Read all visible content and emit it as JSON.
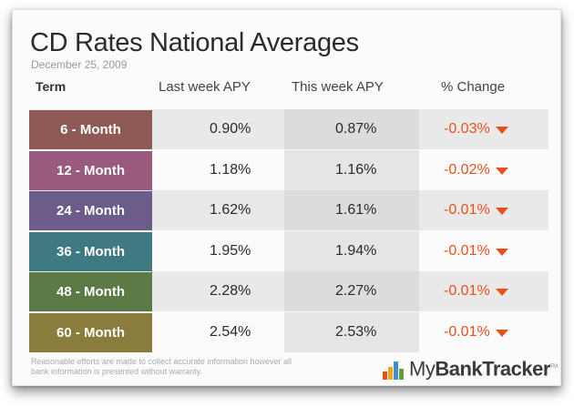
{
  "title": "CD Rates National Averages",
  "date": "December 25, 2009",
  "headers": {
    "term": "Term",
    "last_week": "Last week APY",
    "this_week": "This week APY",
    "change": "% Change"
  },
  "rows": [
    {
      "term": "6 - Month",
      "last_week": "0.90%",
      "this_week": "0.87%",
      "change": "-0.03%",
      "color": "#8f5a55"
    },
    {
      "term": "12 - Month",
      "last_week": "1.18%",
      "this_week": "1.16%",
      "change": "-0.02%",
      "color": "#9a5a7e"
    },
    {
      "term": "24 - Month",
      "last_week": "1.62%",
      "this_week": "1.61%",
      "change": "-0.01%",
      "color": "#6c5c8c"
    },
    {
      "term": "36 - Month",
      "last_week": "1.95%",
      "this_week": "1.94%",
      "change": "-0.01%",
      "color": "#3f7a82"
    },
    {
      "term": "48 - Month",
      "last_week": "2.28%",
      "this_week": "2.27%",
      "change": "-0.01%",
      "color": "#5b7a45"
    },
    {
      "term": "60 - Month",
      "last_week": "2.54%",
      "this_week": "2.53%",
      "change": "-0.01%",
      "color": "#8a7c3c"
    }
  ],
  "chart_data": {
    "type": "table",
    "title": "CD Rates National Averages",
    "subtitle": "December 25, 2009",
    "columns": [
      "Term",
      "Last week APY",
      "This week APY",
      "% Change"
    ],
    "rows": [
      [
        "6 - Month",
        "0.90%",
        "0.87%",
        "-0.03%"
      ],
      [
        "12 - Month",
        "1.18%",
        "1.16%",
        "-0.02%"
      ],
      [
        "24 - Month",
        "1.62%",
        "1.61%",
        "-0.01%"
      ],
      [
        "36 - Month",
        "1.95%",
        "1.94%",
        "-0.01%"
      ],
      [
        "48 - Month",
        "2.28%",
        "2.27%",
        "-0.01%"
      ],
      [
        "60 - Month",
        "2.54%",
        "2.53%",
        "-0.01%"
      ]
    ]
  },
  "footer": {
    "disclaimer": "Reasonable efforts are made to collect accurate information however all bank information is presented without warranty.",
    "logo_my": "My",
    "logo_bank": "BankTracker",
    "logo_tm": "TM",
    "logo_colors": [
      "#e8501a",
      "#f2a51a",
      "#3f8fd0",
      "#6a9a3a"
    ]
  },
  "colors": {
    "decrease": "#e8501a"
  }
}
